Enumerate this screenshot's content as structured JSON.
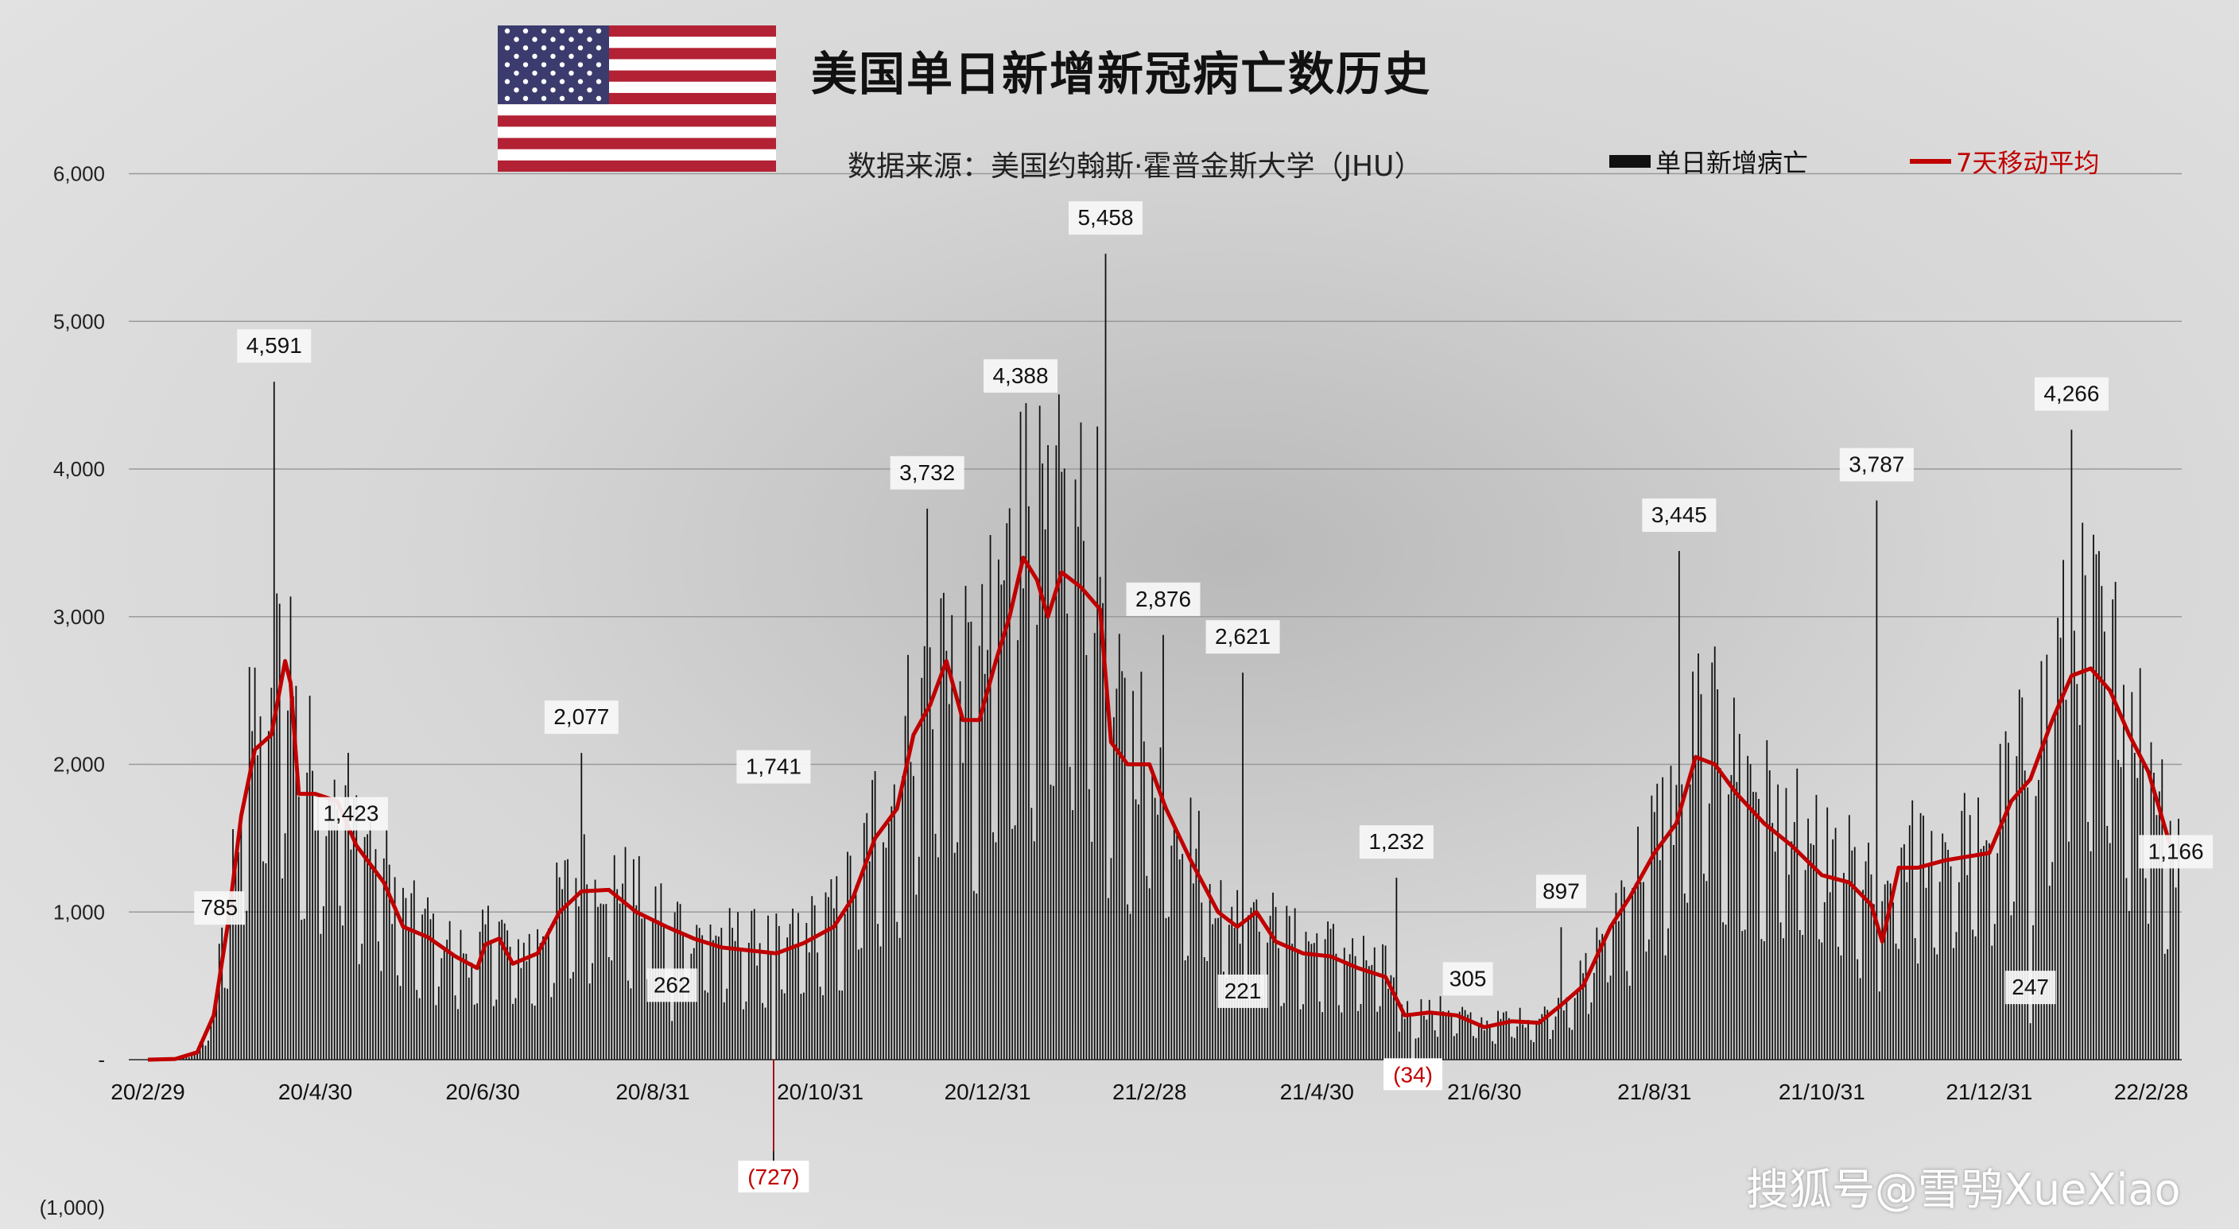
{
  "title": "美国单日新增新冠病亡数历史",
  "source": "数据来源：美国约翰斯·霍普金斯大学（JHU）",
  "legend": {
    "bar_label": "单日新增病亡",
    "line_label": "7天移动平均"
  },
  "watermark": "搜狐号@雪鸮XueXiao",
  "colors": {
    "bar": "#111111",
    "line": "#c00000",
    "negative_label": "#c00000",
    "grid": "#9a9a9a"
  },
  "icons": {
    "flag": "us-flag-icon"
  },
  "chart_data": {
    "type": "bar",
    "title": "美国单日新增新冠病亡数历史",
    "start_date": "2020-02-29",
    "end_date": "2022-03-10",
    "ylim": [
      -1000,
      6000
    ],
    "yticks": [
      {
        "value": 6000,
        "label": "6,000"
      },
      {
        "value": 5000,
        "label": "5,000"
      },
      {
        "value": 4000,
        "label": "4,000"
      },
      {
        "value": 3000,
        "label": "3,000"
      },
      {
        "value": 2000,
        "label": "2,000"
      },
      {
        "value": 1000,
        "label": "1,000"
      },
      {
        "value": 0,
        "label": "-"
      },
      {
        "value": -1000,
        "label": "(1,000)"
      }
    ],
    "xticks": [
      {
        "date": "2020-02-29",
        "label": "20/2/29"
      },
      {
        "date": "2020-04-30",
        "label": "20/4/30"
      },
      {
        "date": "2020-06-30",
        "label": "20/6/30"
      },
      {
        "date": "2020-08-31",
        "label": "20/8/31"
      },
      {
        "date": "2020-10-31",
        "label": "20/10/31"
      },
      {
        "date": "2020-12-31",
        "label": "20/12/31"
      },
      {
        "date": "2021-02-28",
        "label": "21/2/28"
      },
      {
        "date": "2021-04-30",
        "label": "21/4/30"
      },
      {
        "date": "2021-06-30",
        "label": "21/6/30"
      },
      {
        "date": "2021-08-31",
        "label": "21/8/31"
      },
      {
        "date": "2021-10-31",
        "label": "21/10/31"
      },
      {
        "date": "2021-12-31",
        "label": "21/12/31"
      },
      {
        "date": "2022-02-28",
        "label": "22/2/28"
      }
    ],
    "series": [
      {
        "name": "7天移动平均",
        "type": "line",
        "points": [
          [
            "2020-02-29",
            0
          ],
          [
            "2020-03-10",
            5
          ],
          [
            "2020-03-18",
            50
          ],
          [
            "2020-03-24",
            300
          ],
          [
            "2020-03-29",
            900
          ],
          [
            "2020-04-03",
            1650
          ],
          [
            "2020-04-08",
            2100
          ],
          [
            "2020-04-14",
            2200
          ],
          [
            "2020-04-19",
            2700
          ],
          [
            "2020-04-21",
            2550
          ],
          [
            "2020-04-24",
            1800
          ],
          [
            "2020-04-30",
            1800
          ],
          [
            "2020-05-08",
            1750
          ],
          [
            "2020-05-15",
            1450
          ],
          [
            "2020-05-25",
            1200
          ],
          [
            "2020-06-01",
            900
          ],
          [
            "2020-06-10",
            830
          ],
          [
            "2020-06-20",
            700
          ],
          [
            "2020-06-28",
            620
          ],
          [
            "2020-07-01",
            780
          ],
          [
            "2020-07-06",
            820
          ],
          [
            "2020-07-11",
            650
          ],
          [
            "2020-07-20",
            720
          ],
          [
            "2020-07-28",
            1000
          ],
          [
            "2020-08-05",
            1140
          ],
          [
            "2020-08-15",
            1150
          ],
          [
            "2020-08-25",
            1000
          ],
          [
            "2020-09-05",
            900
          ],
          [
            "2020-09-15",
            820
          ],
          [
            "2020-09-25",
            760
          ],
          [
            "2020-10-05",
            740
          ],
          [
            "2020-10-15",
            720
          ],
          [
            "2020-10-25",
            790
          ],
          [
            "2020-11-05",
            900
          ],
          [
            "2020-11-12",
            1100
          ],
          [
            "2020-11-20",
            1500
          ],
          [
            "2020-11-28",
            1700
          ],
          [
            "2020-12-04",
            2200
          ],
          [
            "2020-12-10",
            2400
          ],
          [
            "2020-12-16",
            2700
          ],
          [
            "2020-12-22",
            2300
          ],
          [
            "2020-12-28",
            2300
          ],
          [
            "2021-01-03",
            2700
          ],
          [
            "2021-01-08",
            3000
          ],
          [
            "2021-01-13",
            3400
          ],
          [
            "2021-01-18",
            3250
          ],
          [
            "2021-01-22",
            3000
          ],
          [
            "2021-01-27",
            3300
          ],
          [
            "2021-02-03",
            3200
          ],
          [
            "2021-02-10",
            3050
          ],
          [
            "2021-02-14",
            2150
          ],
          [
            "2021-02-20",
            2000
          ],
          [
            "2021-02-28",
            2000
          ],
          [
            "2021-03-06",
            1700
          ],
          [
            "2021-03-15",
            1350
          ],
          [
            "2021-03-25",
            1000
          ],
          [
            "2021-04-01",
            900
          ],
          [
            "2021-04-08",
            1000
          ],
          [
            "2021-04-15",
            800
          ],
          [
            "2021-04-25",
            720
          ],
          [
            "2021-05-05",
            700
          ],
          [
            "2021-05-15",
            620
          ],
          [
            "2021-05-25",
            560
          ],
          [
            "2021-06-01",
            300
          ],
          [
            "2021-06-10",
            320
          ],
          [
            "2021-06-20",
            300
          ],
          [
            "2021-06-30",
            220
          ],
          [
            "2021-07-10",
            260
          ],
          [
            "2021-07-20",
            250
          ],
          [
            "2021-07-28",
            370
          ],
          [
            "2021-08-05",
            500
          ],
          [
            "2021-08-15",
            900
          ],
          [
            "2021-08-22",
            1100
          ],
          [
            "2021-08-31",
            1400
          ],
          [
            "2021-09-08",
            1600
          ],
          [
            "2021-09-15",
            2050
          ],
          [
            "2021-09-22",
            2000
          ],
          [
            "2021-09-30",
            1800
          ],
          [
            "2021-10-10",
            1600
          ],
          [
            "2021-10-20",
            1450
          ],
          [
            "2021-10-31",
            1250
          ],
          [
            "2021-11-10",
            1200
          ],
          [
            "2021-11-18",
            1050
          ],
          [
            "2021-11-22",
            800
          ],
          [
            "2021-11-28",
            1300
          ],
          [
            "2021-12-05",
            1300
          ],
          [
            "2021-12-15",
            1350
          ],
          [
            "2021-12-31",
            1400
          ],
          [
            "2022-01-08",
            1750
          ],
          [
            "2022-01-15",
            1900
          ],
          [
            "2022-01-23",
            2300
          ],
          [
            "2022-01-30",
            2600
          ],
          [
            "2022-02-06",
            2650
          ],
          [
            "2022-02-13",
            2500
          ],
          [
            "2022-02-20",
            2200
          ],
          [
            "2022-02-27",
            1950
          ],
          [
            "2022-03-03",
            1700
          ],
          [
            "2022-03-07",
            1450
          ]
        ]
      }
    ],
    "annotations": [
      {
        "date": "2020-03-26",
        "value": 785,
        "label": "785"
      },
      {
        "date": "2020-04-15",
        "value": 4591,
        "label": "4,591"
      },
      {
        "date": "2020-05-13",
        "value": 1423,
        "label": "1,423"
      },
      {
        "date": "2020-08-05",
        "value": 2077,
        "label": "2,077"
      },
      {
        "date": "2020-09-07",
        "value": 262,
        "label": "262"
      },
      {
        "date": "2020-10-14",
        "value": 1741,
        "label": "1,741"
      },
      {
        "date": "2020-10-14",
        "value": -727,
        "label": "(727)",
        "negative": true
      },
      {
        "date": "2020-12-09",
        "value": 3732,
        "label": "3,732"
      },
      {
        "date": "2021-01-12",
        "value": 4388,
        "label": "4,388"
      },
      {
        "date": "2021-02-12",
        "value": 5458,
        "label": "5,458"
      },
      {
        "date": "2021-03-05",
        "value": 2876,
        "label": "2,876"
      },
      {
        "date": "2021-04-03",
        "value": 221,
        "label": "221"
      },
      {
        "date": "2021-04-03",
        "value": 2621,
        "label": "2,621"
      },
      {
        "date": "2021-05-29",
        "value": 1232,
        "label": "1,232"
      },
      {
        "date": "2021-06-04",
        "value": -34,
        "label": "(34)",
        "negative": true
      },
      {
        "date": "2021-06-24",
        "value": 305,
        "label": "305"
      },
      {
        "date": "2021-07-28",
        "value": 897,
        "label": "897"
      },
      {
        "date": "2021-09-09",
        "value": 3445,
        "label": "3,445"
      },
      {
        "date": "2021-11-20",
        "value": 3787,
        "label": "3,787"
      },
      {
        "date": "2022-01-15",
        "value": 247,
        "label": "247"
      },
      {
        "date": "2022-01-30",
        "value": 4266,
        "label": "4,266"
      },
      {
        "date": "2022-03-09",
        "value": 1166,
        "label": "1,166"
      }
    ]
  }
}
